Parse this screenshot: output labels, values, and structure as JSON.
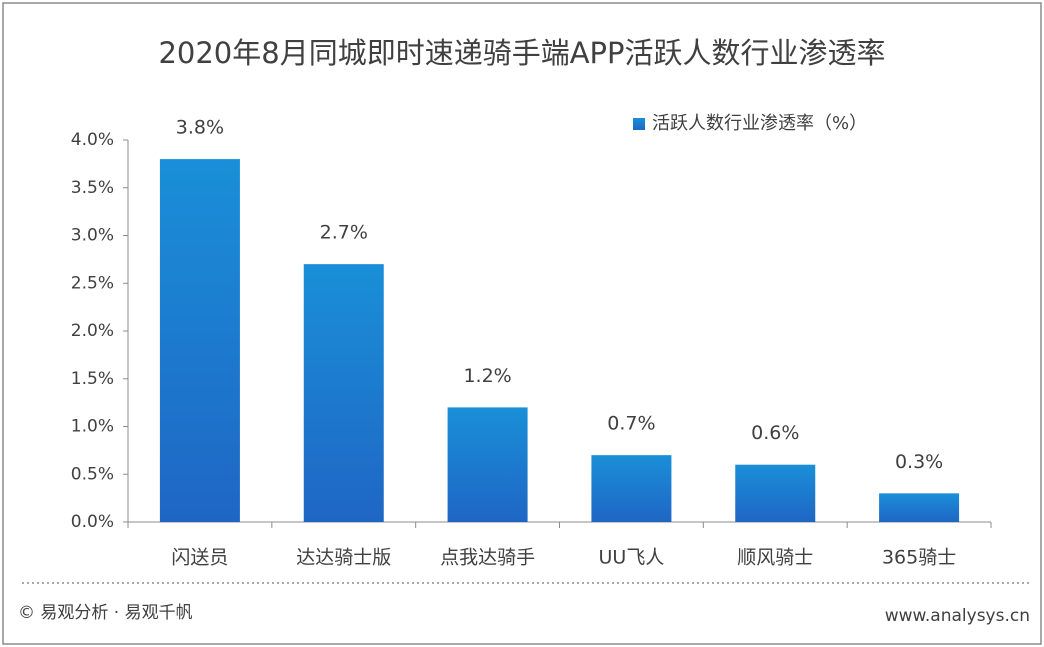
{
  "chart_data": {
    "type": "bar",
    "title": "2020年8月同城即时速递骑手端APP活跃人数行业渗透率",
    "categories": [
      "闪送员",
      "达达骑士版",
      "点我达骑手",
      "UU飞人",
      "顺风骑士",
      "365骑士"
    ],
    "series": [
      {
        "name": "活跃人数行业渗透率（%）",
        "color": "#1a8fd8",
        "values": [
          3.8,
          2.7,
          1.2,
          0.7,
          0.6,
          0.3
        ],
        "value_labels": [
          "3.8%",
          "2.7%",
          "1.2%",
          "0.7%",
          "0.6%",
          "0.3%"
        ]
      }
    ],
    "ylim": [
      0,
      4
    ],
    "yticks": [
      {
        "value": 0,
        "label": "0.0%"
      },
      {
        "value": 0.5,
        "label": "0.5%"
      },
      {
        "value": 1,
        "label": "1.0%"
      },
      {
        "value": 1.5,
        "label": "1.5%"
      },
      {
        "value": 2,
        "label": "2.0%"
      },
      {
        "value": 2.5,
        "label": "2.5%"
      },
      {
        "value": 3,
        "label": "3.0%"
      },
      {
        "value": 3.5,
        "label": "3.5%"
      },
      {
        "value": 4,
        "label": "4.0%"
      }
    ],
    "grid": false,
    "legend": "top-right"
  },
  "footer": {
    "source": "© 易观分析 · 易观千帆",
    "url": "www.analysys.cn"
  }
}
